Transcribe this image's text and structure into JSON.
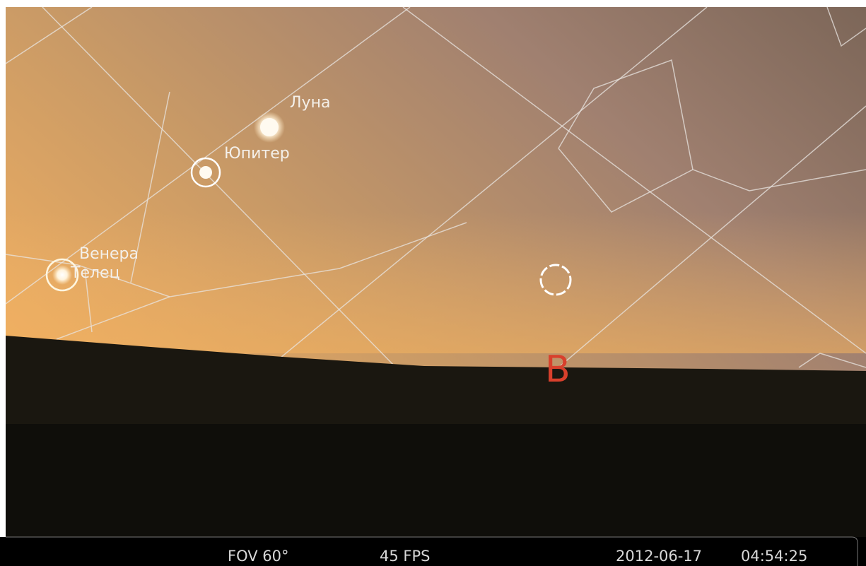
{
  "sky": {
    "labels": {
      "moon": "Луна",
      "jupiter": "Юпитер",
      "venus": "Венера",
      "constellation": "Телец",
      "cardinal": "В"
    }
  },
  "status_bar": {
    "fov": "FOV 60°",
    "fps": "45 FPS",
    "date": "2012-06-17",
    "time": "04:54:25"
  }
}
